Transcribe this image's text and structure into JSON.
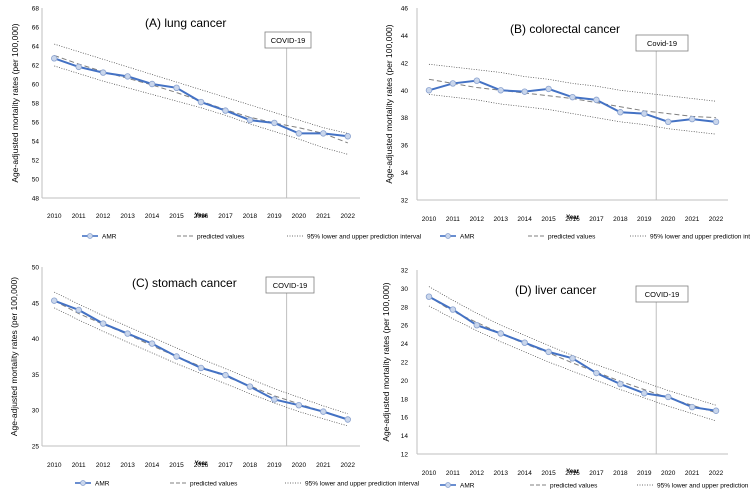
{
  "chart_data": [
    {
      "type": "line",
      "title": "(A) lung cancer",
      "xlabel": "Year",
      "ylabel": "Age-adjusted mortality rates (per 100,000)",
      "ylim": [
        48,
        68
      ],
      "yticks": [
        48,
        50,
        52,
        54,
        56,
        58,
        60,
        62,
        64,
        66,
        68
      ],
      "categories": [
        "2010",
        "2011",
        "2012",
        "2013",
        "2014",
        "2015",
        "2016",
        "2017",
        "2018",
        "2019",
        "2020",
        "2021",
        "2022"
      ],
      "annotation": "COVID-19",
      "annotation_x": 2019.5,
      "series": [
        {
          "name": "AMR",
          "values": [
            62.7,
            61.8,
            61.2,
            60.8,
            60.0,
            59.6,
            58.1,
            57.2,
            56.2,
            55.9,
            54.8,
            54.8,
            54.5
          ]
        },
        {
          "name": "predicted values",
          "values": [
            63.0,
            62.1,
            61.3,
            60.6,
            59.9,
            59.1,
            58.2,
            57.3,
            56.5,
            55.9,
            55.4,
            54.8,
            53.8
          ]
        },
        {
          "name": "95% lower and upper prediction interval",
          "lower": [
            61.9,
            61.1,
            60.3,
            59.6,
            58.9,
            58.2,
            57.5,
            56.7,
            55.8,
            55.0,
            54.2,
            53.3,
            52.6
          ],
          "upper": [
            64.2,
            63.4,
            62.6,
            61.8,
            61.0,
            60.2,
            59.4,
            58.6,
            57.8,
            57.0,
            56.2,
            55.4,
            54.8
          ]
        }
      ]
    },
    {
      "type": "line",
      "title": "(B) colorectal cancer",
      "xlabel": "Year",
      "ylabel": "Age-adjusted mortality rates (per 100,000)",
      "ylim": [
        32,
        46
      ],
      "yticks": [
        32,
        34,
        36,
        38,
        40,
        42,
        44,
        46
      ],
      "categories": [
        "2010",
        "2011",
        "2012",
        "2013",
        "2014",
        "2015",
        "2016",
        "2017",
        "2018",
        "2019",
        "2020",
        "2021",
        "2022"
      ],
      "annotation": "Covid-19",
      "annotation_x": 2019.5,
      "series": [
        {
          "name": "AMR",
          "values": [
            40.0,
            40.5,
            40.7,
            40.0,
            39.9,
            40.1,
            39.5,
            39.3,
            38.4,
            38.3,
            37.7,
            37.9,
            37.7
          ]
        },
        {
          "name": "predicted values",
          "values": [
            40.8,
            40.5,
            40.2,
            40.0,
            39.8,
            39.6,
            39.4,
            39.1,
            38.8,
            38.5,
            38.3,
            38.1,
            38.0
          ]
        },
        {
          "name": "95% lower and upper prediction interval",
          "lower": [
            39.7,
            39.5,
            39.3,
            39.0,
            38.8,
            38.6,
            38.3,
            38.0,
            37.7,
            37.5,
            37.2,
            37.0,
            36.8
          ],
          "upper": [
            41.9,
            41.7,
            41.5,
            41.3,
            41.0,
            40.8,
            40.5,
            40.3,
            40.0,
            39.8,
            39.6,
            39.4,
            39.2
          ]
        }
      ]
    },
    {
      "type": "line",
      "title": "(C) stomach cancer",
      "xlabel": "Year",
      "ylabel": "Age-adjusted mortality rates (per 100,000)",
      "ylim": [
        25,
        50
      ],
      "yticks": [
        25,
        30,
        35,
        40,
        45,
        50
      ],
      "categories": [
        "2010",
        "2011",
        "2012",
        "2013",
        "2014",
        "2015",
        "2016",
        "2017",
        "2018",
        "2019",
        "2020",
        "2021",
        "2022"
      ],
      "annotation": "COVID-19",
      "annotation_x": 2019.5,
      "series": [
        {
          "name": "AMR",
          "values": [
            45.3,
            44.0,
            42.1,
            40.7,
            39.3,
            37.5,
            35.9,
            34.9,
            33.3,
            31.5,
            30.7,
            29.8,
            28.7
          ]
        },
        {
          "name": "predicted values",
          "values": [
            45.3,
            43.5,
            42.0,
            40.6,
            39.0,
            37.5,
            36.1,
            34.7,
            33.4,
            32.0,
            30.9,
            29.8,
            28.7
          ]
        },
        {
          "name": "95% lower and upper prediction interval",
          "lower": [
            44.3,
            42.6,
            41.0,
            39.5,
            38.0,
            36.5,
            35.1,
            33.7,
            32.3,
            31.0,
            29.8,
            28.8,
            27.8
          ],
          "upper": [
            46.5,
            44.8,
            43.2,
            41.7,
            40.2,
            38.7,
            37.2,
            35.8,
            34.4,
            33.0,
            31.8,
            30.6,
            29.5
          ]
        }
      ]
    },
    {
      "type": "line",
      "title": "(D) liver cancer",
      "xlabel": "Year",
      "ylabel": "Age-adjusted mortality rates (per 100,000)",
      "ylim": [
        12,
        32
      ],
      "yticks": [
        12,
        14,
        16,
        18,
        20,
        22,
        24,
        26,
        28,
        30,
        32
      ],
      "categories": [
        "2010",
        "2011",
        "2012",
        "2013",
        "2014",
        "2015",
        "2016",
        "2017",
        "2018",
        "2019",
        "2020",
        "2021",
        "2022"
      ],
      "annotation": "COVID-19",
      "annotation_x": 2019.5,
      "series": [
        {
          "name": "AMR",
          "values": [
            29.1,
            27.7,
            26.0,
            25.1,
            24.1,
            23.1,
            22.4,
            20.8,
            19.6,
            18.6,
            18.2,
            17.1,
            16.7
          ]
        },
        {
          "name": "predicted values",
          "values": [
            29.1,
            27.5,
            26.3,
            25.1,
            24.0,
            23.0,
            21.9,
            20.9,
            19.9,
            19.0,
            18.1,
            17.3,
            16.5
          ]
        },
        {
          "name": "95% lower and upper prediction interval",
          "lower": [
            28.1,
            26.7,
            25.4,
            24.2,
            23.1,
            22.0,
            21.0,
            20.0,
            19.0,
            18.1,
            17.2,
            16.4,
            15.6
          ],
          "upper": [
            30.2,
            28.7,
            27.3,
            26.0,
            24.9,
            23.8,
            22.7,
            21.7,
            20.8,
            19.8,
            18.9,
            18.1,
            17.3
          ]
        }
      ]
    }
  ],
  "palette": {
    "amr_line": "#4472c4",
    "amr_marker_fill": "#c9d6ec",
    "predicted": "#7f7f7f",
    "interval": "#404040",
    "axis": "#bfbfbf",
    "covid_line": "#bfbfbf"
  }
}
